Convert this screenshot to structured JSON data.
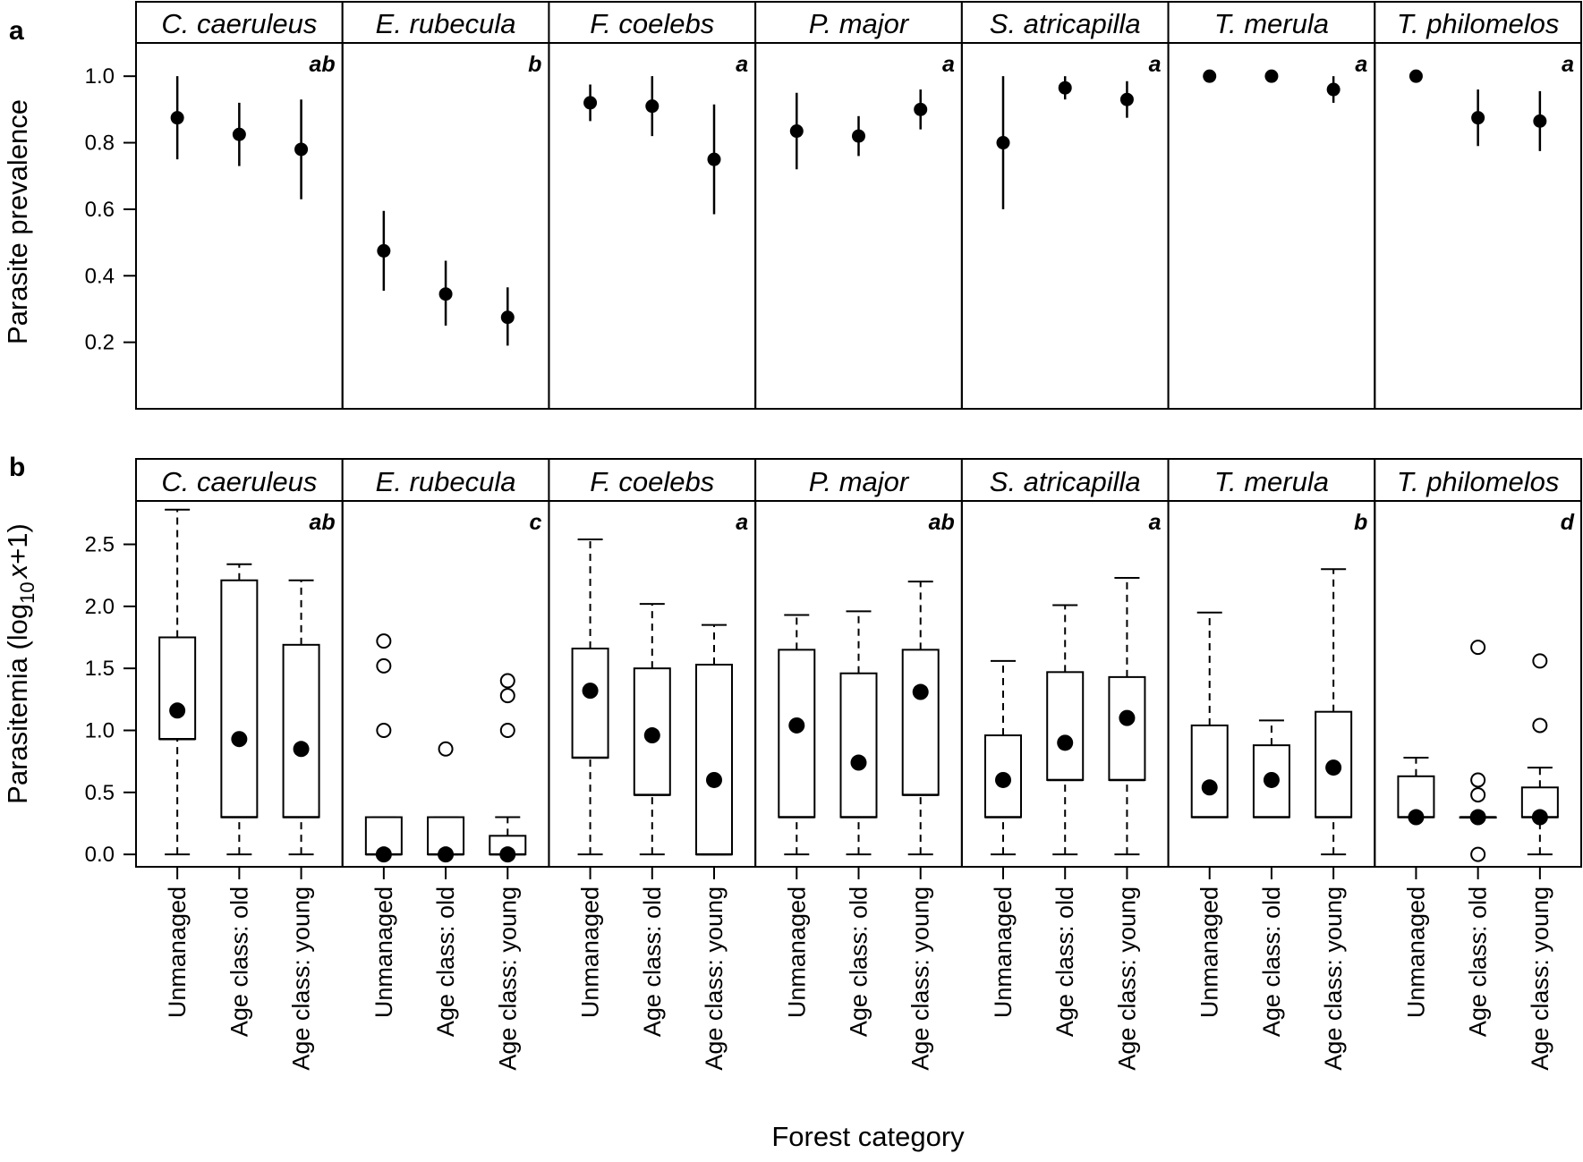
{
  "xlabel": "Forest category",
  "categories": [
    "Unmanaged",
    "Age class: old",
    "Age class: young"
  ],
  "species": [
    "C. caeruleus",
    "E. rubecula",
    "F. coelebs",
    "P. major",
    "S. atricapilla",
    "T. merula",
    "T. philomelos"
  ],
  "chart_data": [
    {
      "type": "scatter",
      "panel_label": "a",
      "ylabel": "Parasite prevalence",
      "ylim": [
        0,
        1.1
      ],
      "yticks": [
        "0.2",
        "0.4",
        "0.6",
        "0.8",
        "1.0"
      ],
      "ytick_values": [
        0.2,
        0.4,
        0.6,
        0.8,
        1.0
      ],
      "facets": [
        {
          "species": "C. caeruleus",
          "letter": "ab",
          "points": [
            {
              "category": "Unmanaged",
              "estimate": 0.875,
              "lower": 0.75,
              "upper": 1.0
            },
            {
              "category": "Age class: old",
              "estimate": 0.825,
              "lower": 0.73,
              "upper": 0.92
            },
            {
              "category": "Age class: young",
              "estimate": 0.78,
              "lower": 0.63,
              "upper": 0.93
            }
          ]
        },
        {
          "species": "E. rubecula",
          "letter": "b",
          "points": [
            {
              "category": "Unmanaged",
              "estimate": 0.475,
              "lower": 0.355,
              "upper": 0.595
            },
            {
              "category": "Age class: old",
              "estimate": 0.345,
              "lower": 0.25,
              "upper": 0.445
            },
            {
              "category": "Age class: young",
              "estimate": 0.275,
              "lower": 0.19,
              "upper": 0.365
            }
          ]
        },
        {
          "species": "F. coelebs",
          "letter": "a",
          "points": [
            {
              "category": "Unmanaged",
              "estimate": 0.92,
              "lower": 0.865,
              "upper": 0.975
            },
            {
              "category": "Age class: old",
              "estimate": 0.91,
              "lower": 0.82,
              "upper": 1.0
            },
            {
              "category": "Age class: young",
              "estimate": 0.75,
              "lower": 0.585,
              "upper": 0.915
            }
          ]
        },
        {
          "species": "P. major",
          "letter": "a",
          "points": [
            {
              "category": "Unmanaged",
              "estimate": 0.835,
              "lower": 0.72,
              "upper": 0.95
            },
            {
              "category": "Age class: old",
              "estimate": 0.82,
              "lower": 0.76,
              "upper": 0.88
            },
            {
              "category": "Age class: young",
              "estimate": 0.9,
              "lower": 0.84,
              "upper": 0.96
            }
          ]
        },
        {
          "species": "S. atricapilla",
          "letter": "a",
          "points": [
            {
              "category": "Unmanaged",
              "estimate": 0.8,
              "lower": 0.6,
              "upper": 1.0
            },
            {
              "category": "Age class: old",
              "estimate": 0.965,
              "lower": 0.93,
              "upper": 1.0
            },
            {
              "category": "Age class: young",
              "estimate": 0.93,
              "lower": 0.875,
              "upper": 0.985
            }
          ]
        },
        {
          "species": "T. merula",
          "letter": "a",
          "points": [
            {
              "category": "Unmanaged",
              "estimate": 1.0,
              "lower": 1.0,
              "upper": 1.0
            },
            {
              "category": "Age class: old",
              "estimate": 1.0,
              "lower": 1.0,
              "upper": 1.0
            },
            {
              "category": "Age class: young",
              "estimate": 0.96,
              "lower": 0.92,
              "upper": 1.0
            }
          ]
        },
        {
          "species": "T. philomelos",
          "letter": "a",
          "points": [
            {
              "category": "Unmanaged",
              "estimate": 1.0,
              "lower": 1.0,
              "upper": 1.0
            },
            {
              "category": "Age class: old",
              "estimate": 0.875,
              "lower": 0.79,
              "upper": 0.96
            },
            {
              "category": "Age class: young",
              "estimate": 0.865,
              "lower": 0.775,
              "upper": 0.955
            }
          ]
        }
      ]
    },
    {
      "type": "box",
      "panel_label": "b",
      "ylabel": "Parasitemia (log",
      "ylabel_sub": "10",
      "ylabel_var": "x",
      "ylabel_end": "+1)",
      "ylim": [
        -0.1,
        2.85
      ],
      "yticks": [
        "0.0",
        "0.5",
        "1.0",
        "1.5",
        "2.0",
        "2.5"
      ],
      "ytick_values": [
        0,
        0.5,
        1.0,
        1.5,
        2.0,
        2.5
      ],
      "facets": [
        {
          "species": "C. caeruleus",
          "letter": "ab",
          "boxes": [
            {
              "category": "Unmanaged",
              "whisker_low": 0,
              "q1": 0.93,
              "median": 0.93,
              "q3": 1.75,
              "whisker_high": 2.78,
              "mean": 1.16,
              "outliers": []
            },
            {
              "category": "Age class: old",
              "whisker_low": 0,
              "q1": 0.3,
              "median": 0.3,
              "q3": 2.21,
              "whisker_high": 2.34,
              "mean": 0.93,
              "outliers": []
            },
            {
              "category": "Age class: young",
              "whisker_low": 0,
              "q1": 0.3,
              "median": 0.3,
              "q3": 1.69,
              "whisker_high": 2.21,
              "mean": 0.85,
              "outliers": []
            }
          ]
        },
        {
          "species": "E. rubecula",
          "letter": "c",
          "boxes": [
            {
              "category": "Unmanaged",
              "whisker_low": 0,
              "q1": 0,
              "median": 0,
              "q3": 0.3,
              "whisker_high": 0.3,
              "mean": 0,
              "outliers": [
                1.0,
                1.52,
                1.72
              ]
            },
            {
              "category": "Age class: old",
              "whisker_low": 0,
              "q1": 0,
              "median": 0,
              "q3": 0.3,
              "whisker_high": 0.3,
              "mean": 0,
              "outliers": [
                0.85
              ]
            },
            {
              "category": "Age class: young",
              "whisker_low": 0,
              "q1": 0,
              "median": 0,
              "q3": 0.15,
              "whisker_high": 0.3,
              "mean": 0,
              "outliers": [
                1.0,
                1.28,
                1.4
              ]
            }
          ]
        },
        {
          "species": "F. coelebs",
          "letter": "a",
          "boxes": [
            {
              "category": "Unmanaged",
              "whisker_low": 0,
              "q1": 0.78,
              "median": 0.78,
              "q3": 1.66,
              "whisker_high": 2.54,
              "mean": 1.32,
              "outliers": []
            },
            {
              "category": "Age class: old",
              "whisker_low": 0,
              "q1": 0.48,
              "median": 0.48,
              "q3": 1.5,
              "whisker_high": 2.02,
              "mean": 0.96,
              "outliers": []
            },
            {
              "category": "Age class: young",
              "whisker_low": 0,
              "q1": 0,
              "median": 0,
              "q3": 1.53,
              "whisker_high": 1.85,
              "mean": 0.6,
              "outliers": []
            }
          ]
        },
        {
          "species": "P. major",
          "letter": "ab",
          "boxes": [
            {
              "category": "Unmanaged",
              "whisker_low": 0,
              "q1": 0.3,
              "median": 0.3,
              "q3": 1.65,
              "whisker_high": 1.93,
              "mean": 1.04,
              "outliers": []
            },
            {
              "category": "Age class: old",
              "whisker_low": 0,
              "q1": 0.3,
              "median": 0.3,
              "q3": 1.46,
              "whisker_high": 1.96,
              "mean": 0.74,
              "outliers": []
            },
            {
              "category": "Age class: young",
              "whisker_low": 0,
              "q1": 0.48,
              "median": 0.48,
              "q3": 1.65,
              "whisker_high": 2.2,
              "mean": 1.31,
              "outliers": []
            }
          ]
        },
        {
          "species": "S. atricapilla",
          "letter": "a",
          "boxes": [
            {
              "category": "Unmanaged",
              "whisker_low": 0,
              "q1": 0.3,
              "median": 0.3,
              "q3": 0.96,
              "whisker_high": 1.56,
              "mean": 0.6,
              "outliers": []
            },
            {
              "category": "Age class: old",
              "whisker_low": 0,
              "q1": 0.6,
              "median": 0.6,
              "q3": 1.47,
              "whisker_high": 2.01,
              "mean": 0.9,
              "outliers": []
            },
            {
              "category": "Age class: young",
              "whisker_low": 0,
              "q1": 0.6,
              "median": 0.6,
              "q3": 1.43,
              "whisker_high": 2.23,
              "mean": 1.1,
              "outliers": []
            }
          ]
        },
        {
          "species": "T. merula",
          "letter": "b",
          "boxes": [
            {
              "category": "Unmanaged",
              "whisker_low": 0.3,
              "q1": 0.3,
              "median": 0.3,
              "q3": 1.04,
              "whisker_high": 1.95,
              "mean": 0.54,
              "outliers": []
            },
            {
              "category": "Age class: old",
              "whisker_low": 0.3,
              "q1": 0.3,
              "median": 0.3,
              "q3": 0.88,
              "whisker_high": 1.08,
              "mean": 0.6,
              "outliers": []
            },
            {
              "category": "Age class: young",
              "whisker_low": 0,
              "q1": 0.3,
              "median": 0.3,
              "q3": 1.15,
              "whisker_high": 2.3,
              "mean": 0.7,
              "outliers": []
            }
          ]
        },
        {
          "species": "T. philomelos",
          "letter": "d",
          "boxes": [
            {
              "category": "Unmanaged",
              "whisker_low": 0.3,
              "q1": 0.3,
              "median": 0.3,
              "q3": 0.63,
              "whisker_high": 0.78,
              "mean": 0.3,
              "outliers": []
            },
            {
              "category": "Age class: old",
              "whisker_low": 0.3,
              "q1": 0.3,
              "median": 0.3,
              "q3": 0.3,
              "whisker_high": 0.3,
              "mean": 0.3,
              "outliers": [
                0,
                0.48,
                0.6,
                1.67
              ]
            },
            {
              "category": "Age class: young",
              "whisker_low": 0,
              "q1": 0.3,
              "median": 0.3,
              "q3": 0.54,
              "whisker_high": 0.7,
              "mean": 0.3,
              "outliers": [
                1.04,
                1.56
              ]
            }
          ]
        }
      ]
    }
  ]
}
